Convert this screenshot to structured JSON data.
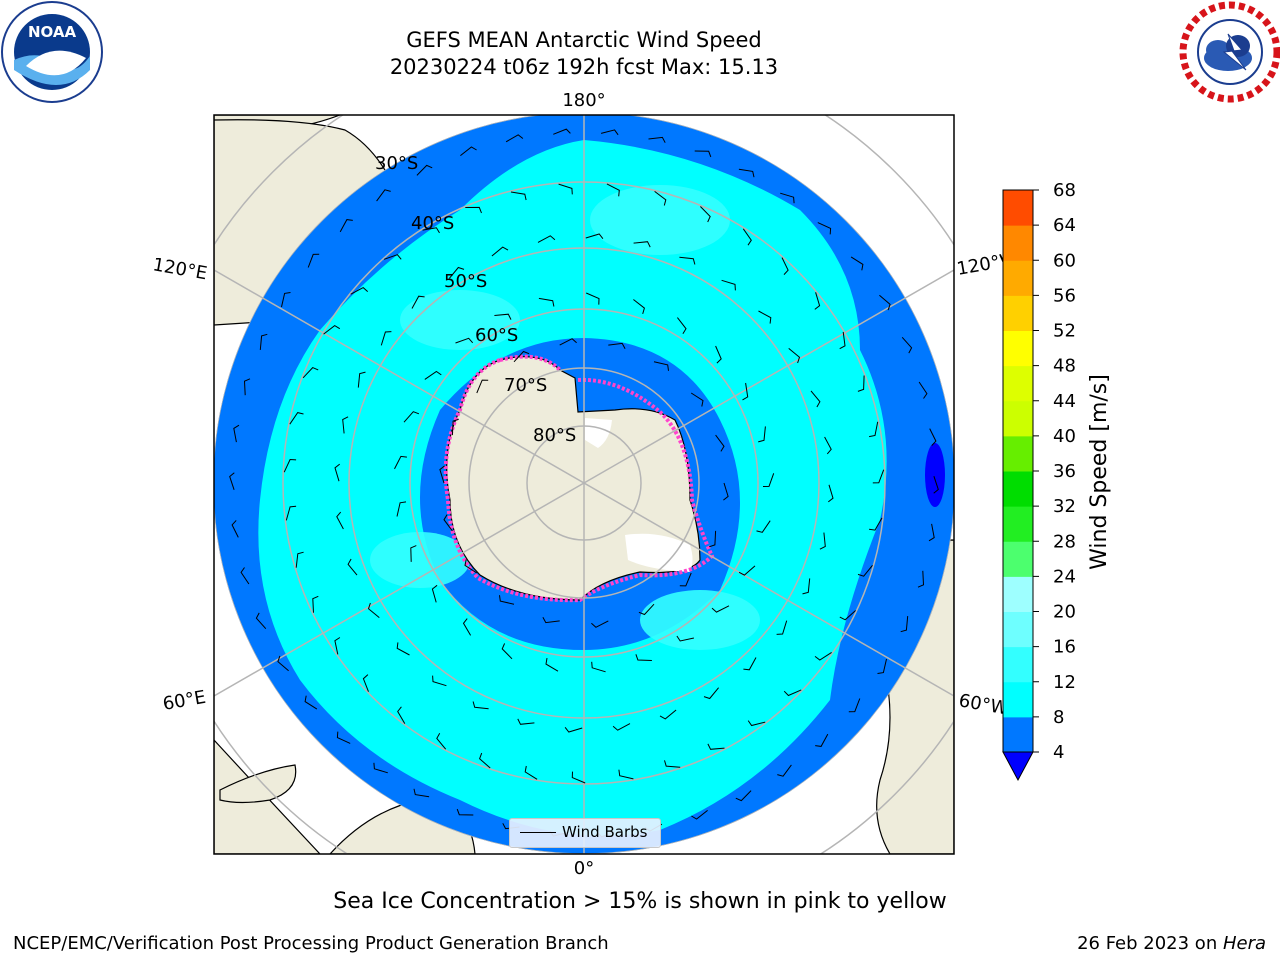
{
  "title": {
    "line1": "GEFS MEAN Antarctic Wind Speed",
    "line2": "20230224 t06z 192h fcst   Max: 15.13"
  },
  "logos": {
    "left": {
      "icon": "noaa-logo",
      "text": "NOAA",
      "ring_text": "NATIONAL OCEANIC AND ATMOSPHERIC ADMINISTRATION · U.S. DEPARTMENT OF COMMERCE"
    },
    "right": {
      "icon": "national-weather-service-logo",
      "ring_text": "NATIONAL WEATHER SERVICE"
    }
  },
  "map": {
    "projection": "south-polar-stereographic",
    "longitude_labels": {
      "top": "180°",
      "bottom": "0°",
      "upper_left": "120°E",
      "upper_right": "120°W",
      "lower_left": "60°E",
      "lower_right": "60°W"
    },
    "latitude_labels": [
      "30°S",
      "40°S",
      "50°S",
      "60°S",
      "70°S",
      "80°S"
    ],
    "legend_label": "Wind Barbs",
    "colors": {
      "land": "#eeecdb",
      "coast": "#000000",
      "grid": "#b5b5b5"
    }
  },
  "colorbar": {
    "label": "Wind Speed [m/s]",
    "ticks": [
      "4",
      "8",
      "12",
      "16",
      "20",
      "24",
      "28",
      "32",
      "36",
      "40",
      "44",
      "48",
      "52",
      "56",
      "60",
      "64",
      "68"
    ],
    "colors": [
      "#0078ff",
      "#00ffff",
      "#33ffff",
      "#6effff",
      "#9effff",
      "#4cff6e",
      "#22ee22",
      "#00dd00",
      "#66ee00",
      "#ccff00",
      "#ddff00",
      "#ffff00",
      "#ffd000",
      "#ffaa00",
      "#ff8800",
      "#ff4c00",
      "#ff0000"
    ],
    "extend_color": "#0000ff"
  },
  "caption": "Sea Ice Concentration > 15% is shown in pink to yellow",
  "footer": {
    "credit": "NCEP/EMC/Verification Post Processing Product Generation Branch",
    "date": "26 Feb 2023 on ",
    "machine": "Hera"
  }
}
